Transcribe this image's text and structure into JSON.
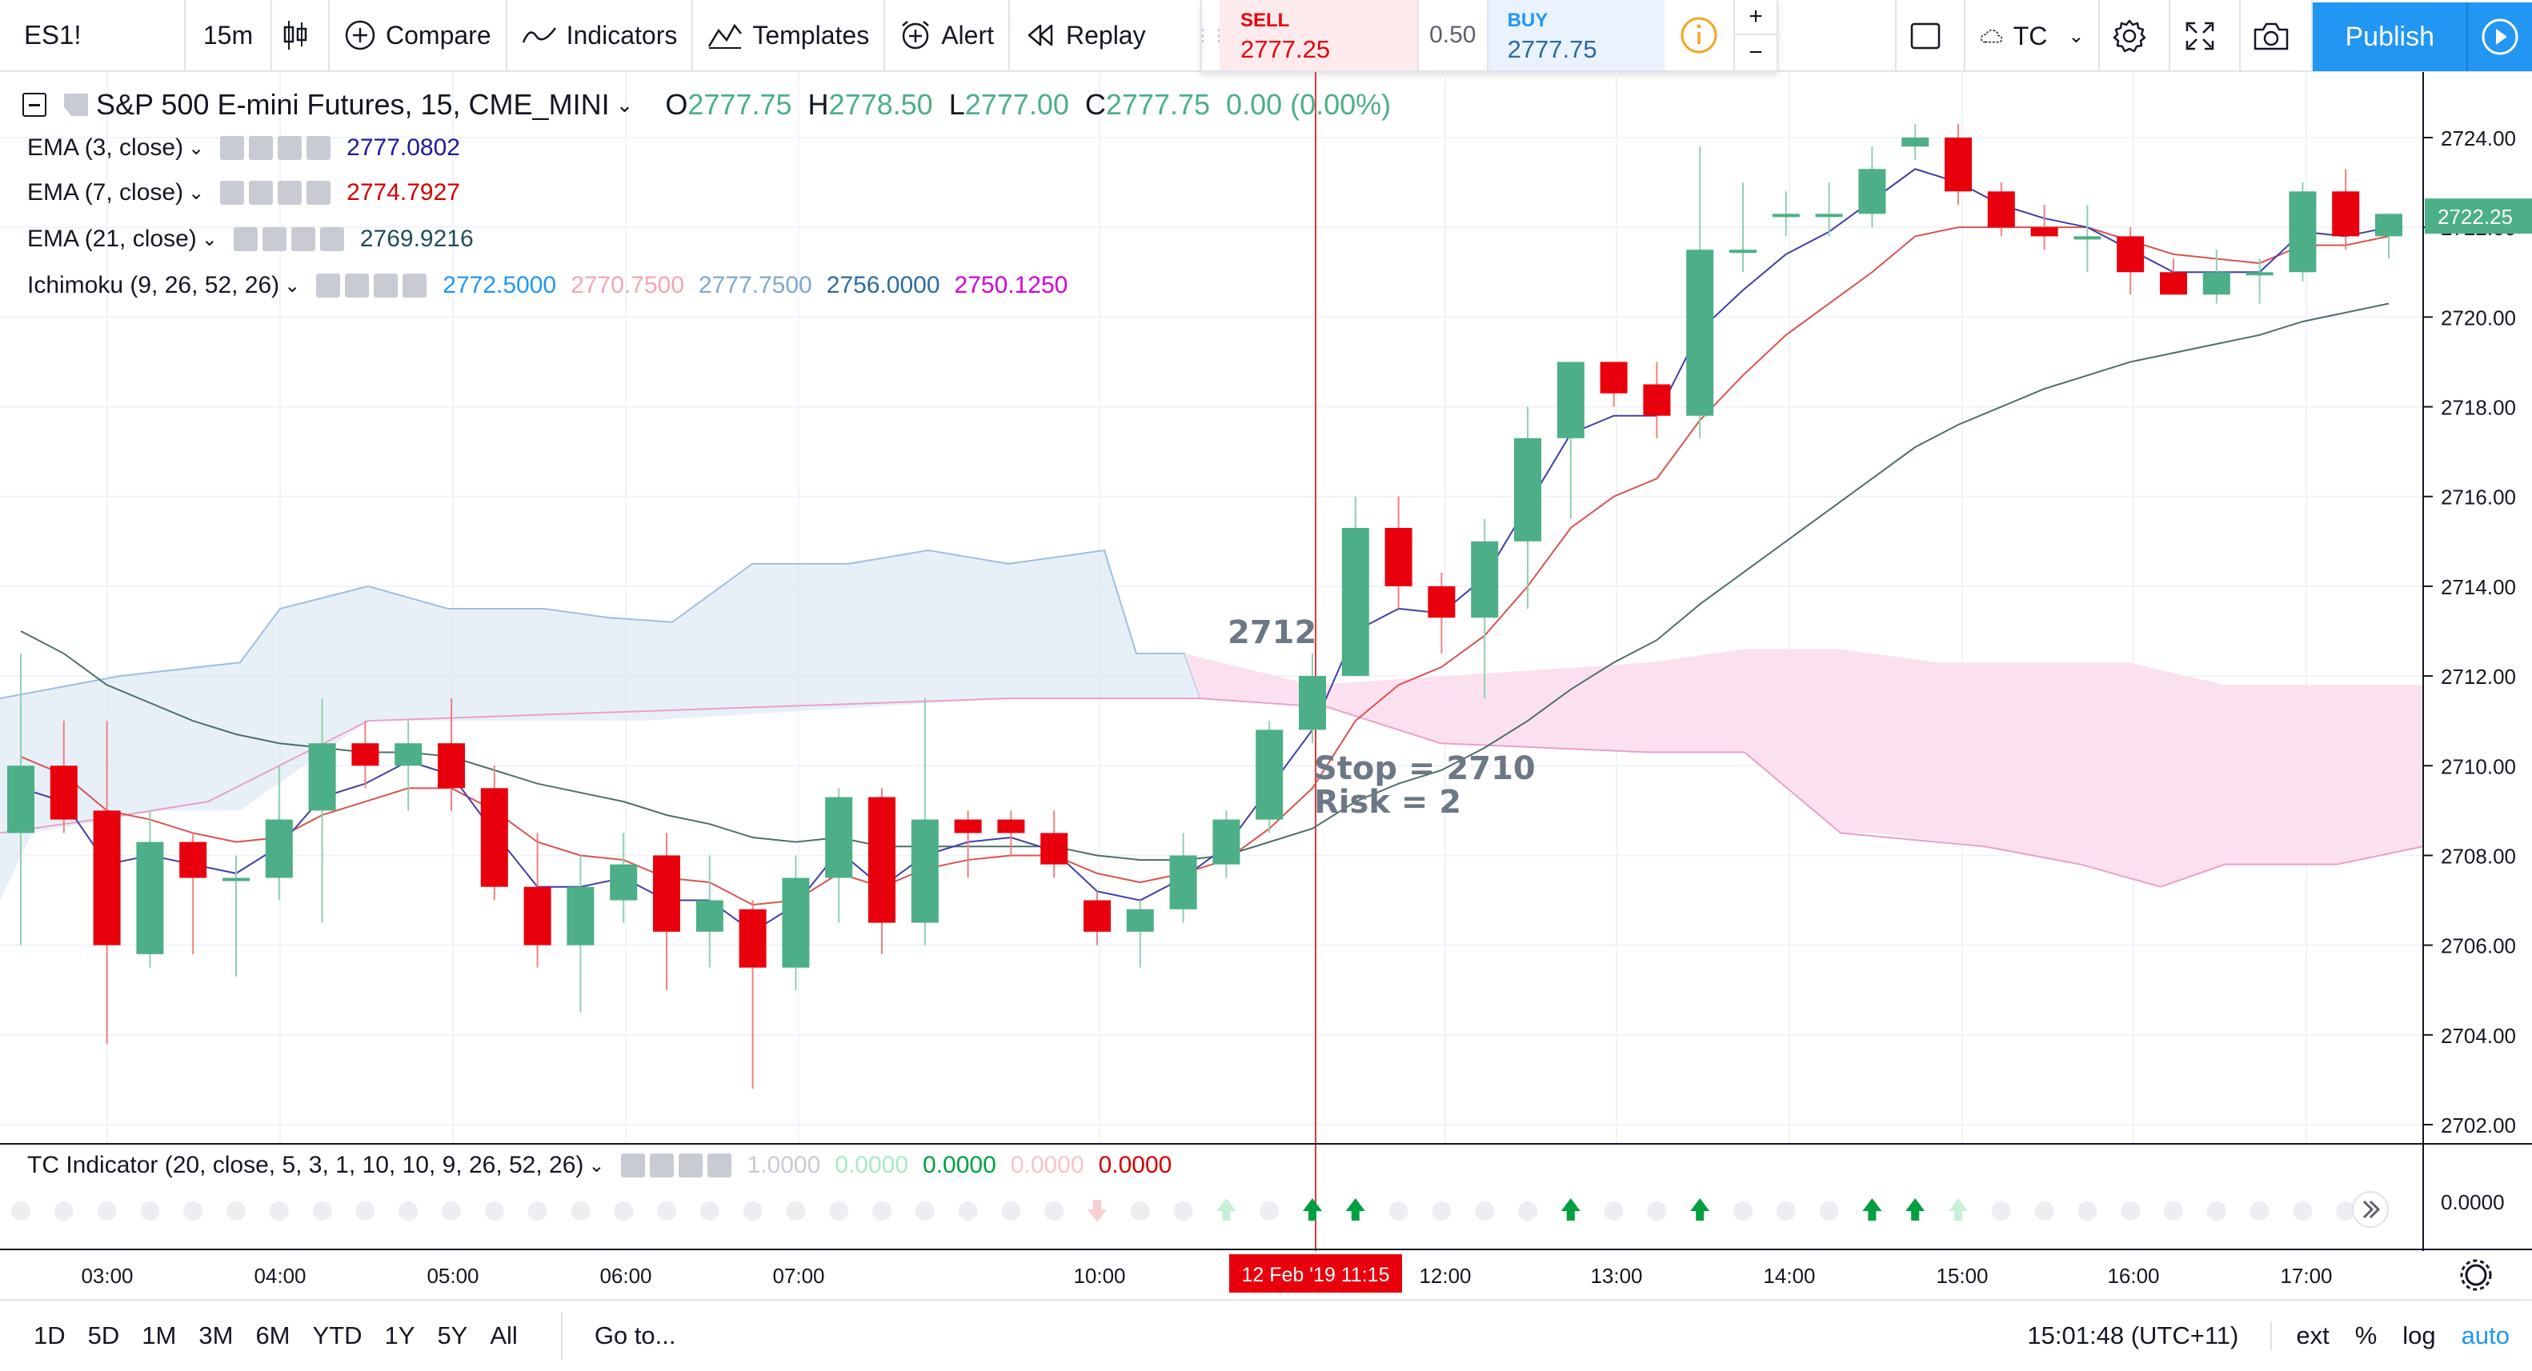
{
  "toolbar": {
    "symbol": "ES1!",
    "interval": "15m",
    "compare": "Compare",
    "indicators": "Indicators",
    "templates": "Templates",
    "alert": "Alert",
    "replay": "Replay",
    "layout_name": "TC",
    "publish": "Publish"
  },
  "trade_panel": {
    "sell_label": "SELL",
    "sell_price": "2777.25",
    "spread": "0.50",
    "buy_label": "BUY",
    "buy_price": "2777.75",
    "plus": "+",
    "minus": "−"
  },
  "main_legend": {
    "title": "S&P 500 E-mini Futures, 15, CME_MINI",
    "o_label": "O",
    "o_value": "2777.75",
    "h_label": "H",
    "h_value": "2778.50",
    "l_label": "L",
    "l_value": "2777.00",
    "c_label": "C",
    "c_value": "2777.75",
    "change": "0.00 (0.00%)"
  },
  "indicators": [
    {
      "label": "EMA (3, close)",
      "values": [
        {
          "v": "2777.0802",
          "color": "#1a1a9f"
        }
      ]
    },
    {
      "label": "EMA (7, close)",
      "values": [
        {
          "v": "2774.7927",
          "color": "#d50000"
        }
      ]
    },
    {
      "label": "EMA (21, close)",
      "values": [
        {
          "v": "2769.9216",
          "color": "#1f4e5a"
        }
      ]
    },
    {
      "label": "Ichimoku (9, 26, 52, 26)",
      "values": [
        {
          "v": "2772.5000",
          "color": "#2196f3"
        },
        {
          "v": "2770.7500",
          "color": "#f4a7b0"
        },
        {
          "v": "2777.7500",
          "color": "#7fa8cf"
        },
        {
          "v": "2756.0000",
          "color": "#2b6aa0"
        },
        {
          "v": "2750.1250",
          "color": "#d500d5"
        }
      ]
    }
  ],
  "annotations": {
    "entry": "2712",
    "stop": "Stop = 2710",
    "risk": "Risk = 2"
  },
  "tc_indicator": {
    "label": "TC Indicator (20, close, 5, 3, 1, 10, 10, 9, 26, 52, 26)",
    "values": [
      {
        "v": "1.0000",
        "color": "#c8cbd3"
      },
      {
        "v": "0.0000",
        "color": "#a6ebc6"
      },
      {
        "v": "0.0000",
        "color": "#00a040"
      },
      {
        "v": "0.0000",
        "color": "#f8c4c9"
      },
      {
        "v": "0.0000",
        "color": "#d50000"
      }
    ],
    "scale_label": "0.0000"
  },
  "price_axis": {
    "labels": [
      "2724.00",
      "2722.00",
      "2720.00",
      "2718.00",
      "2716.00",
      "2714.00",
      "2712.00",
      "2710.00",
      "2708.00",
      "2706.00",
      "2704.00",
      "2702.00"
    ],
    "current_price": "2722.25"
  },
  "time_axis": {
    "labels": [
      "03:00",
      "04:00",
      "05:00",
      "06:00",
      "07:00",
      "10:00",
      "12:00",
      "13:00",
      "14:00",
      "15:00",
      "16:00",
      "17:00"
    ],
    "crosshair_label": "12 Feb '19   11:15"
  },
  "bottom_bar": {
    "ranges": [
      "1D",
      "5D",
      "1M",
      "3M",
      "6M",
      "YTD",
      "1Y",
      "5Y",
      "All"
    ],
    "goto": "Go to...",
    "clock": "15:01:48 (UTC+11)",
    "ext": "ext",
    "percent": "%",
    "log": "log",
    "auto": "auto"
  },
  "colors": {
    "up": "#4caf87",
    "down": "#e8000d",
    "accent": "#2196f3"
  },
  "chart_data": {
    "type": "candlestick",
    "y_range": [
      2701.5,
      2725.0
    ],
    "candles": [
      {
        "o": 2708.5,
        "h": 2712.5,
        "l": 2706.0,
        "c": 2710.0
      },
      {
        "o": 2710.0,
        "h": 2711.0,
        "l": 2708.5,
        "c": 2708.8
      },
      {
        "o": 2709.0,
        "h": 2711.0,
        "l": 2703.8,
        "c": 2706.0
      },
      {
        "o": 2705.8,
        "h": 2709.0,
        "l": 2705.5,
        "c": 2708.3
      },
      {
        "o": 2708.3,
        "h": 2708.5,
        "l": 2705.8,
        "c": 2707.5
      },
      {
        "o": 2707.5,
        "h": 2708.0,
        "l": 2705.3,
        "c": 2707.5
      },
      {
        "o": 2707.5,
        "h": 2710.0,
        "l": 2707.0,
        "c": 2708.8
      },
      {
        "o": 2709.0,
        "h": 2711.5,
        "l": 2706.5,
        "c": 2710.5
      },
      {
        "o": 2710.5,
        "h": 2711.0,
        "l": 2709.5,
        "c": 2710.0
      },
      {
        "o": 2710.0,
        "h": 2711.0,
        "l": 2709.0,
        "c": 2710.5
      },
      {
        "o": 2710.5,
        "h": 2711.5,
        "l": 2709.0,
        "c": 2709.5
      },
      {
        "o": 2709.5,
        "h": 2710.0,
        "l": 2707.0,
        "c": 2707.3
      },
      {
        "o": 2707.3,
        "h": 2708.5,
        "l": 2705.5,
        "c": 2706.0
      },
      {
        "o": 2706.0,
        "h": 2708.0,
        "l": 2704.5,
        "c": 2707.3
      },
      {
        "o": 2707.0,
        "h": 2708.5,
        "l": 2706.5,
        "c": 2707.8
      },
      {
        "o": 2708.0,
        "h": 2708.5,
        "l": 2705.0,
        "c": 2706.3
      },
      {
        "o": 2706.3,
        "h": 2708.0,
        "l": 2705.5,
        "c": 2707.0
      },
      {
        "o": 2706.8,
        "h": 2707.0,
        "l": 2702.8,
        "c": 2705.5
      },
      {
        "o": 2705.5,
        "h": 2708.0,
        "l": 2705.0,
        "c": 2707.5
      },
      {
        "o": 2707.5,
        "h": 2709.5,
        "l": 2706.5,
        "c": 2709.3
      },
      {
        "o": 2709.3,
        "h": 2709.5,
        "l": 2705.8,
        "c": 2706.5
      },
      {
        "o": 2706.5,
        "h": 2711.5,
        "l": 2706.0,
        "c": 2708.8
      },
      {
        "o": 2708.8,
        "h": 2709.0,
        "l": 2707.5,
        "c": 2708.5
      },
      {
        "o": 2708.8,
        "h": 2709.0,
        "l": 2708.0,
        "c": 2708.5
      },
      {
        "o": 2708.5,
        "h": 2709.0,
        "l": 2707.5,
        "c": 2707.8
      },
      {
        "o": 2707.0,
        "h": 2707.2,
        "l": 2706.0,
        "c": 2706.3
      },
      {
        "o": 2706.3,
        "h": 2707.0,
        "l": 2705.5,
        "c": 2706.8
      },
      {
        "o": 2706.8,
        "h": 2708.5,
        "l": 2706.5,
        "c": 2708.0
      },
      {
        "o": 2707.8,
        "h": 2709.0,
        "l": 2707.5,
        "c": 2708.8
      },
      {
        "o": 2708.8,
        "h": 2711.0,
        "l": 2708.5,
        "c": 2710.8
      },
      {
        "o": 2710.8,
        "h": 2712.5,
        "l": 2710.5,
        "c": 2712.0
      },
      {
        "o": 2712.0,
        "h": 2716.0,
        "l": 2712.0,
        "c": 2715.3
      },
      {
        "o": 2715.3,
        "h": 2716.0,
        "l": 2713.5,
        "c": 2714.0
      },
      {
        "o": 2714.0,
        "h": 2714.3,
        "l": 2712.5,
        "c": 2713.3
      },
      {
        "o": 2713.3,
        "h": 2715.5,
        "l": 2711.5,
        "c": 2715.0
      },
      {
        "o": 2715.0,
        "h": 2718.0,
        "l": 2713.5,
        "c": 2717.3
      },
      {
        "o": 2717.3,
        "h": 2719.0,
        "l": 2715.5,
        "c": 2719.0
      },
      {
        "o": 2719.0,
        "h": 2719.0,
        "l": 2718.0,
        "c": 2718.3
      },
      {
        "o": 2718.5,
        "h": 2719.0,
        "l": 2717.3,
        "c": 2717.8
      },
      {
        "o": 2717.8,
        "h": 2723.8,
        "l": 2717.3,
        "c": 2721.5
      },
      {
        "o": 2721.5,
        "h": 2723.0,
        "l": 2721.0,
        "c": 2721.5
      },
      {
        "o": 2722.3,
        "h": 2722.8,
        "l": 2721.8,
        "c": 2722.3
      },
      {
        "o": 2722.3,
        "h": 2723.0,
        "l": 2721.8,
        "c": 2722.3
      },
      {
        "o": 2722.3,
        "h": 2723.8,
        "l": 2722.0,
        "c": 2723.3
      },
      {
        "o": 2723.8,
        "h": 2724.3,
        "l": 2723.5,
        "c": 2724.0
      },
      {
        "o": 2724.0,
        "h": 2724.3,
        "l": 2722.5,
        "c": 2722.8
      },
      {
        "o": 2722.8,
        "h": 2723.0,
        "l": 2721.8,
        "c": 2722.0
      },
      {
        "o": 2722.0,
        "h": 2722.5,
        "l": 2721.5,
        "c": 2721.8
      },
      {
        "o": 2721.8,
        "h": 2722.5,
        "l": 2721.0,
        "c": 2721.8
      },
      {
        "o": 2721.8,
        "h": 2722.0,
        "l": 2720.5,
        "c": 2721.0
      },
      {
        "o": 2721.0,
        "h": 2721.3,
        "l": 2720.5,
        "c": 2720.5
      },
      {
        "o": 2720.5,
        "h": 2721.5,
        "l": 2720.3,
        "c": 2721.0
      },
      {
        "o": 2721.0,
        "h": 2721.3,
        "l": 2720.3,
        "c": 2721.0
      },
      {
        "o": 2721.0,
        "h": 2723.0,
        "l": 2720.8,
        "c": 2722.8
      },
      {
        "o": 2722.8,
        "h": 2723.3,
        "l": 2721.5,
        "c": 2721.8
      },
      {
        "o": 2721.8,
        "h": 2722.3,
        "l": 2721.3,
        "c": 2722.3
      }
    ],
    "ema3": [
      2709.5,
      2709.2,
      2707.8,
      2708.0,
      2707.8,
      2707.6,
      2708.2,
      2709.3,
      2709.6,
      2710.1,
      2709.8,
      2708.5,
      2707.3,
      2707.3,
      2707.5,
      2707.0,
      2707.0,
      2706.3,
      2706.9,
      2708.1,
      2707.3,
      2708.0,
      2708.3,
      2708.4,
      2708.1,
      2707.2,
      2707.0,
      2707.5,
      2708.2,
      2709.5,
      2710.8,
      2713.0,
      2713.5,
      2713.4,
      2714.2,
      2715.8,
      2717.4,
      2717.8,
      2717.8,
      2719.7,
      2720.6,
      2721.4,
      2721.9,
      2722.6,
      2723.3,
      2723.0,
      2722.5,
      2722.2,
      2722.0,
      2721.5,
      2721.0,
      2721.0,
      2721.0,
      2721.9,
      2721.8,
      2722.0
    ],
    "ema7": [
      2710.2,
      2709.8,
      2709.0,
      2708.8,
      2708.5,
      2708.3,
      2708.4,
      2708.9,
      2709.2,
      2709.5,
      2709.5,
      2709.0,
      2708.3,
      2708.0,
      2707.9,
      2707.5,
      2707.4,
      2706.9,
      2707.0,
      2707.6,
      2707.3,
      2707.7,
      2707.9,
      2708.0,
      2708.0,
      2707.6,
      2707.4,
      2707.6,
      2707.9,
      2708.6,
      2709.5,
      2711.0,
      2711.8,
      2712.2,
      2712.9,
      2714.0,
      2715.3,
      2716.0,
      2716.4,
      2717.7,
      2718.7,
      2719.6,
      2720.3,
      2721.0,
      2721.8,
      2722.0,
      2722.0,
      2722.0,
      2722.0,
      2721.7,
      2721.4,
      2721.3,
      2721.2,
      2721.6,
      2721.6,
      2721.8
    ],
    "ema21": [
      2713.0,
      2712.5,
      2711.8,
      2711.4,
      2711.0,
      2710.7,
      2710.5,
      2710.4,
      2710.3,
      2710.3,
      2710.2,
      2709.9,
      2709.6,
      2709.4,
      2709.2,
      2708.9,
      2708.7,
      2708.4,
      2708.3,
      2708.4,
      2708.2,
      2708.2,
      2708.2,
      2708.2,
      2708.2,
      2708.0,
      2707.9,
      2707.9,
      2708.0,
      2708.3,
      2708.6,
      2709.2,
      2709.6,
      2709.9,
      2710.4,
      2711.0,
      2711.7,
      2712.3,
      2712.8,
      2713.6,
      2714.3,
      2715.0,
      2715.7,
      2716.4,
      2717.1,
      2717.6,
      2718.0,
      2718.4,
      2718.7,
      2719.0,
      2719.2,
      2719.4,
      2719.6,
      2719.9,
      2720.1,
      2720.3
    ]
  }
}
